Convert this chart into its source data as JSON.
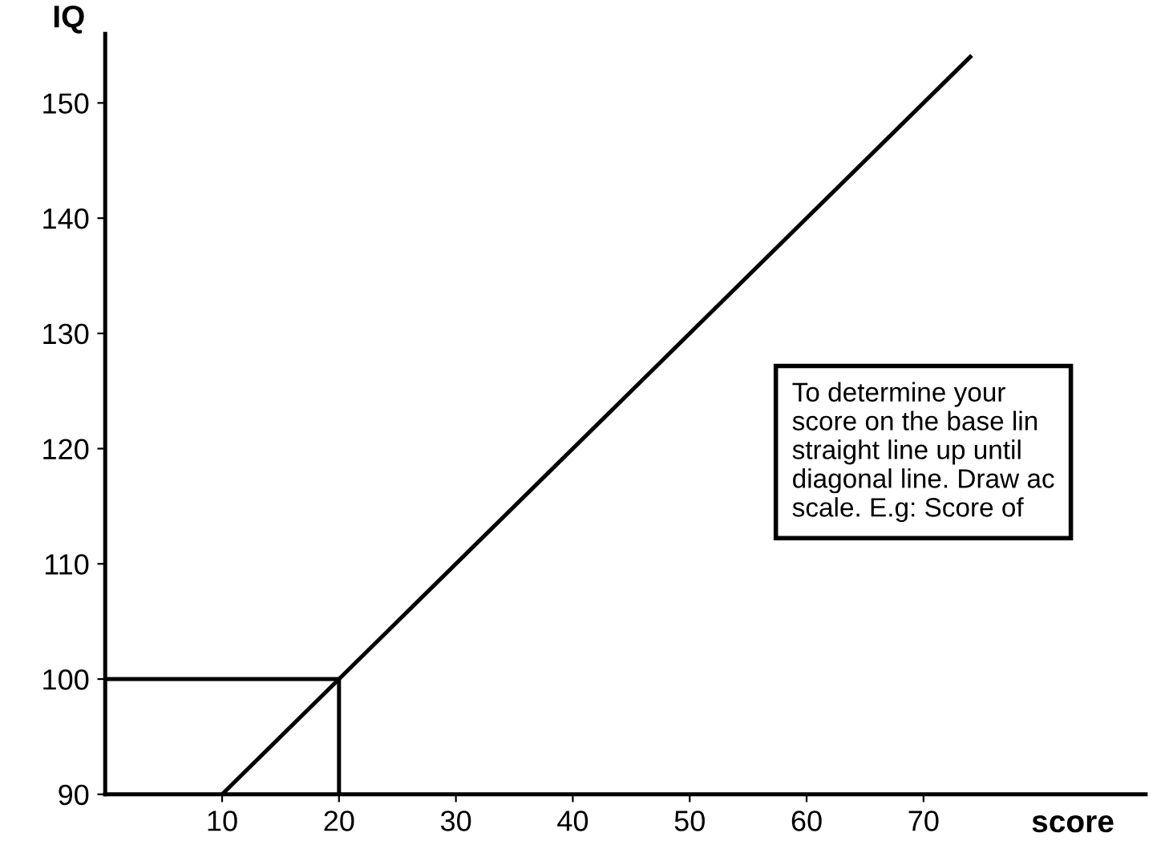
{
  "chart_data": {
    "type": "line",
    "xlabel": "score",
    "ylabel": "IQ",
    "xlim": [
      0,
      89
    ],
    "ylim": [
      90,
      156
    ],
    "xticks": [
      10,
      20,
      30,
      40,
      50,
      60,
      70
    ],
    "yticks": [
      90,
      100,
      110,
      120,
      130,
      140,
      150
    ],
    "series": [
      {
        "color": "#000000",
        "x": [
          10,
          74
        ],
        "values": [
          90,
          154
        ]
      },
      {
        "color": "#000000",
        "x": [
          0,
          20,
          20
        ],
        "values": [
          100,
          100,
          90
        ]
      }
    ],
    "annotations": [
      "To determine your\nscore on the base lin\nstraight line up until\ndiagonal line. Draw ac\nscale. E.g: Score of"
    ],
    "grid": false,
    "legend": false,
    "marker": "none",
    "line_style": "solid"
  }
}
